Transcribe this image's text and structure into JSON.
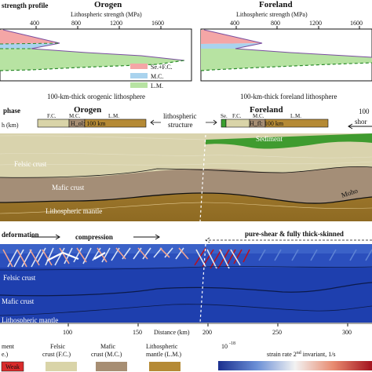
{
  "strength_profile": {
    "panel_label": "strength profile",
    "orogen_title": "Orogen",
    "foreland_title": "Foreland",
    "axis_label_left": "Lithospheric strength (MPa)",
    "axis_label_right": "Lithospheric strength (MPa)",
    "ticks_left": [
      "400",
      "800",
      "1200",
      "1600"
    ],
    "ticks_right": [
      "400",
      "800",
      "1200",
      "1600"
    ],
    "legend": [
      {
        "label": "Se.+F.C.",
        "color": "#f4a6a6"
      },
      {
        "label": "M.C.",
        "color": "#a9d3ee"
      },
      {
        "label": "L.M.",
        "color": "#b7e3a2"
      }
    ],
    "caption_left": "100-km-thick orogenic lithosphere",
    "caption_right": "100-km-thick foreland lithosphere"
  },
  "phase": {
    "panel_label": "phase",
    "axis_fragment": "h (km)",
    "orogen_title": "Orogen",
    "foreland_title": "Foreland",
    "bar_left": {
      "fc": "F.C.",
      "mc": "M.C.",
      "lm": "L.M.",
      "note": "H_ol: 100 km"
    },
    "bar_right": {
      "se": "Se.",
      "fc": "F.C.",
      "mc": "M.C.",
      "lm": "L.M.",
      "note": "H_fl: 100 km"
    },
    "struct_label_1": "lithospheric",
    "struct_label_2": "structure",
    "right_note_1": "100",
    "right_note_2": "shor",
    "layers": {
      "sediment": "Sediment",
      "felsic": "Felsic crust",
      "mafic": "Mafic crust",
      "mantle": "Lithospheric mantle",
      "moho": "Moho"
    }
  },
  "deformation": {
    "panel_label": "deformation",
    "compression": "compression",
    "pure_shear": "pure-shear & fully thick-skinned",
    "layers": {
      "felsic": "Felsic crust",
      "mafic": "Mafic crust",
      "mantle": "Lithospheric mantle"
    },
    "x_ticks": [
      "100",
      "150",
      "200",
      "250",
      "300"
    ],
    "x_label": "Distance (km)"
  },
  "bottom_legend": {
    "sediment_fragment": "ment",
    "sediment_fragment_2": "e.)",
    "weak": "Weak",
    "felsic": "Felsic",
    "felsic_2": "crust (F.C.)",
    "mafic": "Mafic",
    "mafic_2": "crust (M.C.)",
    "mantle": "Lithospheric",
    "mantle_2": "mantle (L.M.)",
    "colorbar_min": "10",
    "colorbar_min_exp": "-18",
    "colorbar_label": "strain rate 2",
    "colorbar_label_sup": "nd",
    "colorbar_label_rest": " invariant, 1/s",
    "colors": {
      "weak": "#d92b2b",
      "felsic": "#d9d4a8",
      "mafic": "#a78e73",
      "mantle": "#b58a35"
    }
  }
}
